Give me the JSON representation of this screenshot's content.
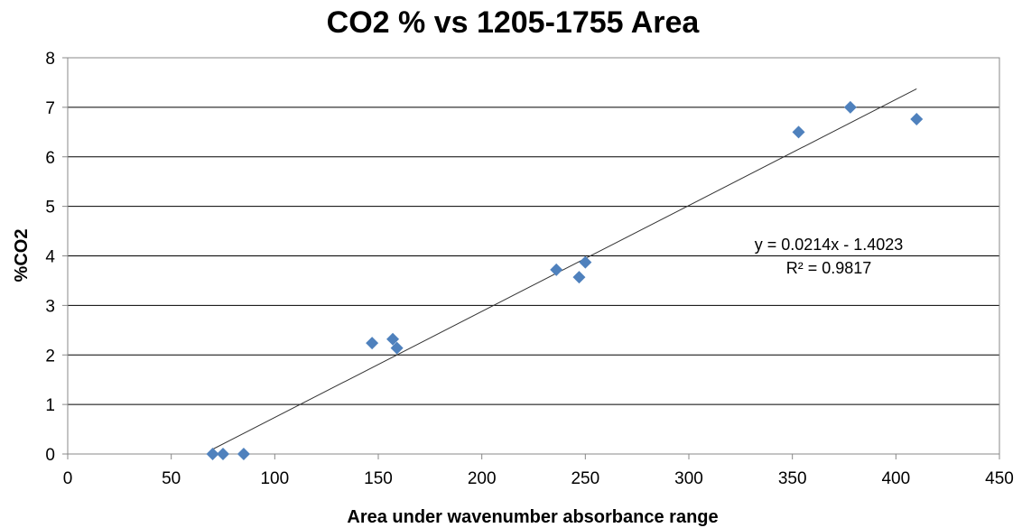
{
  "chart_data": {
    "type": "scatter",
    "title": "CO2 % vs 1205-1755 Area",
    "xlabel": "Area under wavenumber absorbance range",
    "ylabel": "%CO2",
    "xlim": [
      0,
      450
    ],
    "ylim": [
      0,
      8
    ],
    "x_ticks": [
      0,
      50,
      100,
      150,
      200,
      250,
      300,
      350,
      400,
      450
    ],
    "y_ticks": [
      0,
      1,
      2,
      3,
      4,
      5,
      6,
      7,
      8
    ],
    "grid": "horizontal major gridlines",
    "legend": "none",
    "marker": "diamond",
    "color": "#4f81bd",
    "points": [
      {
        "x": 70,
        "y": 0
      },
      {
        "x": 75,
        "y": 0
      },
      {
        "x": 85,
        "y": 0
      },
      {
        "x": 147,
        "y": 2.24
      },
      {
        "x": 157,
        "y": 2.32
      },
      {
        "x": 159,
        "y": 2.14
      },
      {
        "x": 236,
        "y": 3.72
      },
      {
        "x": 247,
        "y": 3.57
      },
      {
        "x": 250,
        "y": 3.87
      },
      {
        "x": 353,
        "y": 6.5
      },
      {
        "x": 378,
        "y": 7.0
      },
      {
        "x": 410,
        "y": 6.76
      }
    ],
    "trendline": {
      "type": "linear",
      "slope": 0.0214,
      "intercept": -1.4023,
      "x_range": [
        70,
        410
      ],
      "equation_label": "y = 0.0214x - 1.4023",
      "r2_label": "R² = 0.9817"
    }
  }
}
